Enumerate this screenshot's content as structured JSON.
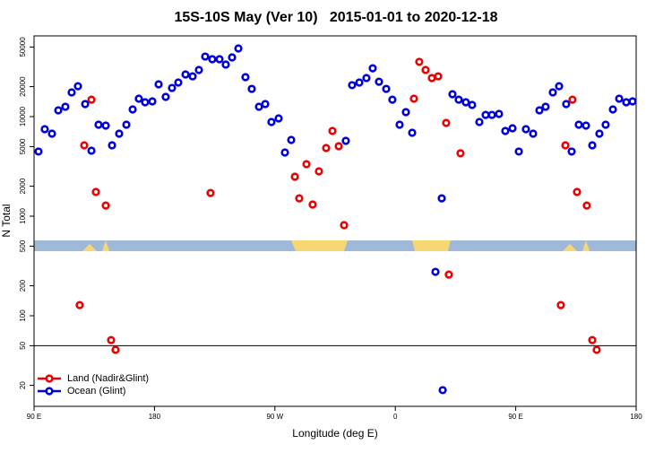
{
  "chart_data": {
    "type": "scatter",
    "title": "15S-10S May (Ver 10)   2015-01-01 to 2020-12-18",
    "xlabel": "Longitude (deg E)",
    "ylabel": "N Total",
    "xlim": [
      90,
      540
    ],
    "xticks": [
      {
        "value": 90,
        "label": "90 E"
      },
      180,
      {
        "value": 270,
        "label": "90 W"
      },
      {
        "value": 360,
        "label": "0"
      },
      {
        "value": 450,
        "label": "90 E"
      },
      {
        "value": 540,
        "label": "180"
      }
    ],
    "ylim": [
      12.3,
      64700
    ],
    "ylog": true,
    "yticks": [
      20,
      50,
      100,
      200,
      500,
      1000,
      2000,
      5000,
      10000,
      20000,
      50000
    ],
    "hlines": [
      50
    ],
    "legend": "bottom-left",
    "series": [
      {
        "name": "Land (Nadir&Glint)",
        "color": "#ee0000",
        "x": [
          124.1,
          127.5,
          132.9,
          136.2,
          143.6,
          147.6,
          150.9,
          221.9,
          284.9,
          288.2,
          293.6,
          298.2,
          302.9,
          308.3,
          313.0,
          317.7,
          321.7,
          373.9,
          377.9,
          382.6,
          387.3,
          392.0,
          398.0,
          400.0,
          408.7,
          483.7,
          487.1,
          492.4,
          495.8,
          503.1,
          507.2,
          510.5
        ],
        "values": [
          128,
          5150,
          14800,
          1750,
          1280,
          57,
          45.5,
          1710,
          2490,
          1510,
          3330,
          1310,
          2820,
          4840,
          7180,
          5040,
          813,
          15140,
          35500,
          29400,
          24400,
          25400,
          8650,
          259,
          4280,
          128,
          5150,
          14800,
          1750,
          1280,
          57,
          45.5
        ]
      },
      {
        "name": "Ocean (Glint)",
        "color": "#0000dd",
        "x": [
          93.3,
          98.0,
          103.4,
          108.1,
          113.4,
          118.1,
          122.8,
          128.2,
          132.9,
          138.2,
          143.6,
          148.3,
          153.6,
          159.0,
          163.7,
          168.3,
          173.0,
          178.4,
          183.1,
          188.4,
          193.1,
          197.8,
          203.2,
          208.5,
          213.2,
          217.9,
          223.2,
          228.6,
          233.3,
          238.0,
          242.7,
          248.0,
          252.7,
          258.1,
          262.8,
          267.4,
          272.8,
          277.5,
          282.2,
          323.0,
          327.7,
          333.1,
          338.4,
          343.1,
          347.8,
          353.2,
          357.8,
          363.2,
          367.9,
          372.6,
          390.0,
          394.7,
          395.4,
          402.7,
          407.4,
          412.7,
          417.4,
          422.8,
          427.5,
          432.2,
          437.5,
          442.2,
          447.6,
          452.3,
          457.6,
          463.0,
          467.7,
          472.3,
          477.7,
          482.4,
          487.7,
          491.8,
          497.1,
          502.5,
          507.2,
          512.5,
          517.2,
          522.6,
          527.3,
          532.6,
          537.3
        ],
        "values": [
          4460,
          7480,
          6740,
          11570,
          12570,
          17500,
          20200,
          13370,
          4550,
          8300,
          8130,
          5150,
          6740,
          8300,
          11800,
          15140,
          13930,
          14230,
          21100,
          15790,
          19400,
          22000,
          26500,
          25400,
          29400,
          40100,
          37700,
          37700,
          33300,
          39300,
          48400,
          24900,
          19000,
          12570,
          13370,
          8830,
          9590,
          4360,
          5830,
          5710,
          20700,
          22000,
          24400,
          30600,
          22400,
          19000,
          14800,
          8300,
          11100,
          6890,
          276,
          1510,
          17.9,
          16800,
          14800,
          13930,
          13100,
          8830,
          10400,
          10400,
          10640,
          7180,
          7640,
          4460,
          7480,
          6740,
          11570,
          12570,
          17500,
          20200,
          13370,
          4460,
          8300,
          8130,
          5150,
          6740,
          8300,
          11800,
          15140,
          13930,
          14230
        ]
      }
    ]
  }
}
